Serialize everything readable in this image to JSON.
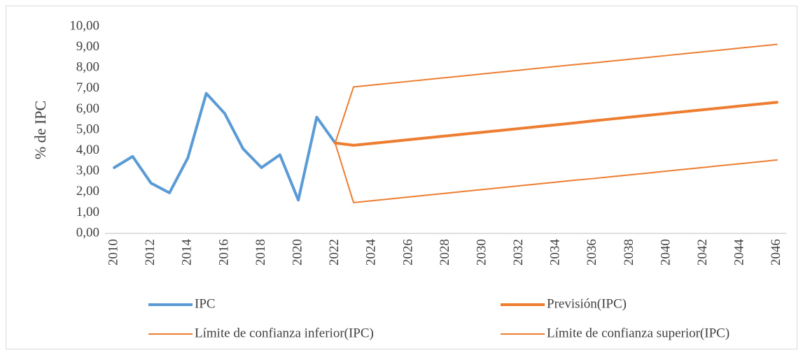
{
  "chart_data": {
    "type": "line",
    "y_label": "% de IPC",
    "categories": [
      "2010",
      null,
      "2012",
      null,
      "2014",
      null,
      "2016",
      null,
      "2018",
      null,
      "2020",
      null,
      "2022",
      null,
      "2024",
      null,
      "2026",
      null,
      "2028",
      null,
      "2030",
      null,
      "2032",
      null,
      "2034",
      null,
      "2036",
      null,
      "2038",
      null,
      "2040",
      null,
      "2042",
      null,
      "2044",
      null,
      "2046"
    ],
    "series": [
      {
        "name": "IPC",
        "color": "#5b9bd5",
        "width": 4,
        "values": [
          3.18,
          3.72,
          2.43,
          1.96,
          3.65,
          6.77,
          5.8,
          4.09,
          3.18,
          3.8,
          1.61,
          5.62,
          4.37,
          null,
          null,
          null,
          null,
          null,
          null,
          null,
          null,
          null,
          null,
          null,
          null,
          null,
          null,
          null,
          null,
          null,
          null,
          null,
          null,
          null,
          null,
          null,
          null
        ]
      },
      {
        "name": "Previsión(IPC)",
        "color": "#ed7d31",
        "width": 4,
        "values": [
          null,
          null,
          null,
          null,
          null,
          null,
          null,
          null,
          null,
          null,
          null,
          null,
          4.37,
          4.26,
          4.35,
          4.44,
          4.53,
          4.62,
          4.71,
          4.8,
          4.89,
          4.98,
          5.07,
          5.16,
          5.25,
          5.34,
          5.44,
          5.53,
          5.62,
          5.71,
          5.8,
          5.89,
          5.98,
          6.07,
          6.16,
          6.25,
          6.34
        ]
      },
      {
        "name": "Límite de confianza inferior(IPC)",
        "color": "#ed7d31",
        "width": 2,
        "values": [
          null,
          null,
          null,
          null,
          null,
          null,
          null,
          null,
          null,
          null,
          null,
          null,
          4.37,
          1.49,
          1.58,
          1.67,
          1.76,
          1.85,
          1.94,
          2.03,
          2.12,
          2.21,
          2.3,
          2.39,
          2.48,
          2.57,
          2.65,
          2.74,
          2.83,
          2.92,
          3.01,
          3.1,
          3.19,
          3.28,
          3.37,
          3.46,
          3.55
        ]
      },
      {
        "name": "Límite de confianza superior(IPC)",
        "color": "#ed7d31",
        "width": 2,
        "values": [
          null,
          null,
          null,
          null,
          null,
          null,
          null,
          null,
          null,
          null,
          null,
          null,
          4.37,
          7.08,
          7.17,
          7.26,
          7.35,
          7.44,
          7.53,
          7.62,
          7.71,
          7.8,
          7.89,
          7.98,
          8.07,
          8.16,
          8.24,
          8.33,
          8.42,
          8.51,
          8.6,
          8.69,
          8.78,
          8.87,
          8.96,
          9.05,
          9.14
        ]
      }
    ],
    "ylim": [
      0,
      10
    ],
    "yticks": [
      {
        "value": 0,
        "label": "0,00"
      },
      {
        "value": 1,
        "label": "1,00"
      },
      {
        "value": 2,
        "label": "2,00"
      },
      {
        "value": 3,
        "label": "3,00"
      },
      {
        "value": 4,
        "label": "4,00"
      },
      {
        "value": 5,
        "label": "5,00"
      },
      {
        "value": 6,
        "label": "6,00"
      },
      {
        "value": 7,
        "label": "7,00"
      },
      {
        "value": 8,
        "label": "8,00"
      },
      {
        "value": 9,
        "label": "9,00"
      },
      {
        "value": 10,
        "label": "10,00"
      }
    ],
    "grid": false,
    "legend": "bottom"
  }
}
